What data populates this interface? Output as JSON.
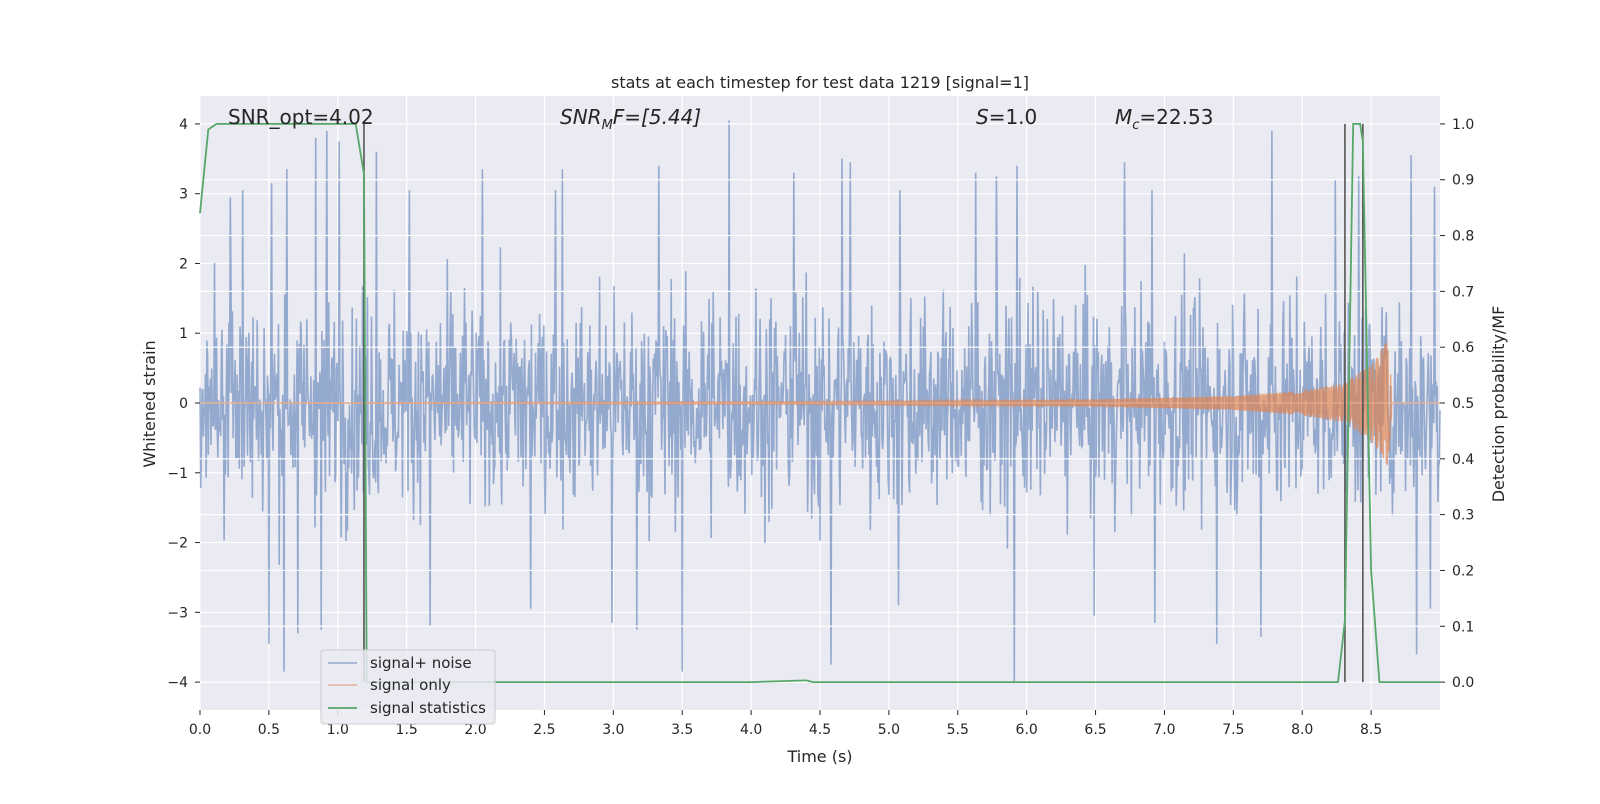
{
  "chart_data": {
    "type": "line",
    "title": "stats at each timestep for test data 1219 [signal=1]",
    "xlabel": "Time (s)",
    "ylabel_left": "Whitened strain",
    "ylabel_right": "Detection probability/MF",
    "xlim": [
      0.0,
      9.0
    ],
    "ylim_left": [
      -4.4,
      4.4
    ],
    "ylim_right": [
      -0.05,
      1.05
    ],
    "xticks": [
      "0.0",
      "0.5",
      "1.0",
      "1.5",
      "2.0",
      "2.5",
      "3.0",
      "3.5",
      "4.0",
      "4.5",
      "5.0",
      "5.5",
      "6.0",
      "6.5",
      "7.0",
      "7.5",
      "8.0",
      "8.5"
    ],
    "yticks_left": [
      "4",
      "3",
      "2",
      "1",
      "0",
      "−1",
      "−2",
      "−3",
      "−4"
    ],
    "yticks_right": [
      "1.0",
      "0.9",
      "0.8",
      "0.7",
      "0.6",
      "0.5",
      "0.4",
      "0.3",
      "0.2",
      "0.1",
      "0.0"
    ],
    "grid": true,
    "legend_placement": "lower-left",
    "annotations": {
      "snr_opt": "SNR_opt=4.02",
      "snr_mf_sym": "SNR",
      "snr_mf_sub": "M",
      "snr_mf_rest": "F=[5.44]",
      "s_sym": "S",
      "s_rest": "=1.0",
      "mc_sym": "M",
      "mc_sub": "c",
      "mc_rest": "=22.53"
    },
    "vertical_lines_x": [
      1.19,
      8.31,
      8.44
    ],
    "series": [
      {
        "name": "signal+ noise",
        "color": "#4c72b0",
        "axis": "left",
        "description_values": {
          "typical_envelope": [
            -2.3,
            2.3
          ],
          "peak_positive": 4.1,
          "peak_negative": -4.0
        },
        "spikes": [
          [
            0.22,
            2.95
          ],
          [
            0.31,
            3.05
          ],
          [
            0.52,
            3.15
          ],
          [
            0.63,
            3.35
          ],
          [
            0.84,
            3.8
          ],
          [
            0.92,
            3.9
          ],
          [
            1.01,
            3.75
          ],
          [
            1.28,
            3.6
          ],
          [
            1.52,
            3.05
          ],
          [
            2.05,
            3.35
          ],
          [
            2.58,
            3.05
          ],
          [
            2.63,
            3.35
          ],
          [
            3.33,
            3.4
          ],
          [
            3.84,
            4.05
          ],
          [
            4.31,
            3.3
          ],
          [
            4.66,
            3.5
          ],
          [
            4.72,
            3.45
          ],
          [
            5.08,
            3.05
          ],
          [
            5.63,
            3.3
          ],
          [
            5.78,
            3.25
          ],
          [
            5.93,
            3.4
          ],
          [
            6.71,
            3.45
          ],
          [
            6.91,
            3.05
          ],
          [
            7.38,
            3.4
          ],
          [
            7.78,
            3.9
          ],
          [
            8.24,
            3.2
          ],
          [
            8.41,
            3.25
          ],
          [
            8.79,
            3.55
          ],
          [
            8.96,
            3.1
          ],
          [
            0.5,
            -3.45
          ],
          [
            0.61,
            -3.85
          ],
          [
            0.71,
            -3.3
          ],
          [
            0.88,
            -3.25
          ],
          [
            1.67,
            -3.2
          ],
          [
            2.4,
            -2.95
          ],
          [
            2.99,
            -3.15
          ],
          [
            3.17,
            -3.25
          ],
          [
            3.5,
            -3.85
          ],
          [
            4.58,
            -3.75
          ],
          [
            5.07,
            -2.9
          ],
          [
            5.91,
            -4.0
          ],
          [
            6.49,
            -3.05
          ],
          [
            6.93,
            -3.15
          ],
          [
            7.38,
            -3.45
          ],
          [
            7.7,
            -3.35
          ],
          [
            8.83,
            -3.6
          ],
          [
            8.93,
            -2.95
          ]
        ]
      },
      {
        "name": "signal only",
        "color": "#dd8452",
        "axis": "left",
        "description_values": {
          "amplitude_at_t": [
            [
              0.0,
              0.0
            ],
            [
              4.5,
              0.02
            ],
            [
              6.5,
              0.05
            ],
            [
              7.5,
              0.1
            ],
            [
              8.0,
              0.18
            ],
            [
              8.3,
              0.28
            ],
            [
              8.5,
              0.55
            ],
            [
              8.62,
              0.9
            ],
            [
              8.66,
              0.0
            ]
          ],
          "merger_time": 8.65
        }
      },
      {
        "name": "signal statistics",
        "color": "#55a868",
        "axis": "right",
        "x": [
          0.0,
          0.06,
          0.12,
          0.5,
          0.9,
          1.13,
          1.19,
          1.21,
          1.24,
          1.3,
          1.5,
          2.0,
          2.5,
          3.0,
          3.2,
          3.5,
          4.0,
          4.4,
          4.45,
          4.5,
          5.0,
          5.5,
          5.6,
          6.0,
          7.0,
          8.0,
          8.26,
          8.31,
          8.34,
          8.37,
          8.42,
          8.44,
          8.5,
          8.56,
          8.7,
          9.0
        ],
        "values": [
          0.84,
          0.99,
          1.0,
          1.0,
          1.0,
          1.0,
          0.91,
          0.0,
          0.0,
          0.0,
          0.0,
          0.0,
          0.0,
          0.0,
          0.0,
          0.0,
          0.0,
          0.003,
          0.0,
          0.0,
          0.0,
          0.0,
          0.0,
          0.0,
          0.0,
          0.0,
          0.0,
          0.11,
          0.55,
          1.0,
          1.0,
          0.97,
          0.2,
          0.0,
          0.0,
          0.0
        ]
      }
    ]
  }
}
